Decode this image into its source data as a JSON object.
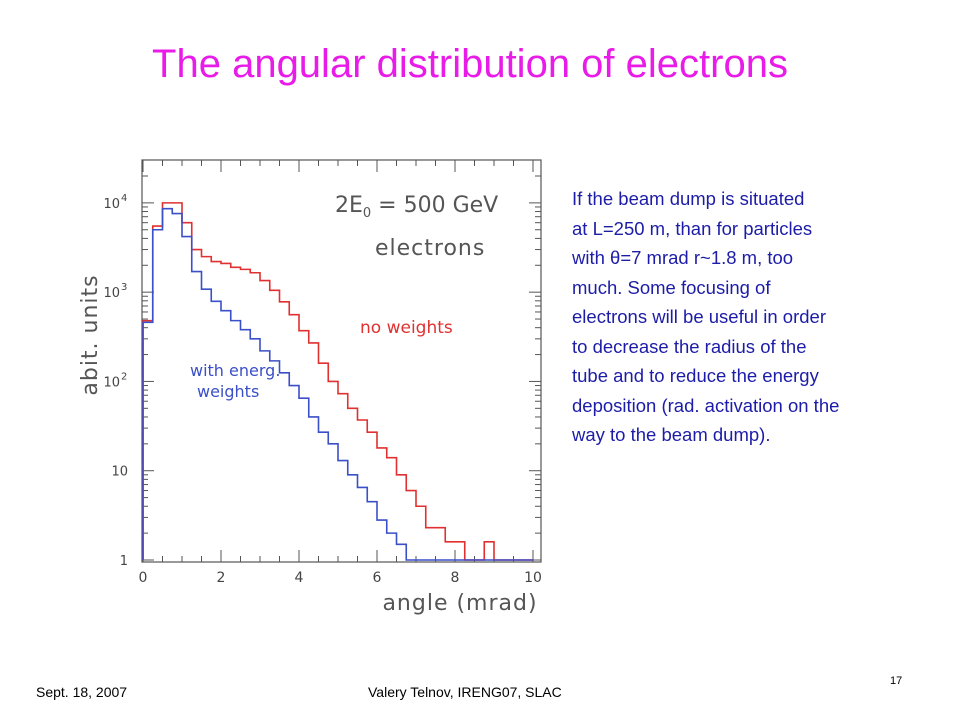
{
  "slide": {
    "title": "The angular distribution of electrons",
    "side_text": [
      "If the beam dump is situated",
      "at L=250 m, than for particles",
      "with θ=7 mrad r~1.8 m, too",
      "much. Some focusing of",
      "electrons will be useful in order",
      "to decrease the radius of the",
      "tube and to reduce the energy",
      "deposition (rad. activation on the",
      "way to the beam dump)."
    ],
    "footer_left": "Sept. 18, 2007",
    "footer_center": "Valery Telnov, IRENG07, SLAC",
    "page_number": "17"
  },
  "chart_data": {
    "type": "histogram",
    "xlabel": "angle (mrad)",
    "ylabel": "abit. units",
    "xlim": [
      0,
      10
    ],
    "ylim": [
      1,
      20000
    ],
    "yscale": "log",
    "x_ticks": [
      "0",
      "2",
      "4",
      "6",
      "8",
      "10"
    ],
    "y_ticks": [
      {
        "value": 1,
        "base": "1",
        "exp": ""
      },
      {
        "value": 10,
        "base": "10",
        "exp": ""
      },
      {
        "value": 100,
        "base": "10",
        "exp": "2"
      },
      {
        "value": 1000,
        "base": "10",
        "exp": "3"
      },
      {
        "value": 10000,
        "base": "10",
        "exp": "4"
      }
    ],
    "energy_label": "2E",
    "energy_label_sub": "0",
    "energy_label_rest": " = 500 GeV",
    "particle_label": "electrons",
    "bin_edges": [
      0,
      0.25,
      0.5,
      0.75,
      1,
      1.25,
      1.5,
      1.75,
      2,
      2.25,
      2.5,
      2.75,
      3,
      3.25,
      3.5,
      3.75,
      4,
      4.25,
      4.5,
      4.75,
      5,
      5.25,
      5.5,
      5.75,
      6,
      6.25,
      6.5,
      6.75,
      7,
      7.25,
      7.5,
      7.75,
      8,
      8.25,
      8.5,
      8.75,
      9,
      9.25,
      9.5,
      9.75,
      10
    ],
    "series": [
      {
        "name": "no weights",
        "color": "#e03030",
        "values": [
          480,
          5500,
          10000,
          10000,
          6000,
          3000,
          2500,
          2200,
          2100,
          1900,
          1800,
          1650,
          1350,
          1050,
          780,
          560,
          370,
          270,
          160,
          100,
          73,
          50,
          37,
          27,
          18,
          14,
          9,
          6,
          4,
          2.3,
          2.3,
          1.6,
          1.6,
          1,
          1,
          1.6,
          0,
          0,
          0,
          0
        ]
      },
      {
        "name": "with energ. weights",
        "color": "#3a4fc8",
        "values": [
          460,
          5000,
          8600,
          7600,
          4200,
          1700,
          1080,
          790,
          620,
          480,
          380,
          300,
          220,
          170,
          125,
          90,
          65,
          40,
          27,
          20,
          13,
          9,
          6.5,
          4.5,
          2.8,
          2,
          1.5,
          1,
          0,
          0,
          0,
          0,
          0,
          0,
          0,
          0,
          0,
          0,
          0,
          0
        ]
      }
    ],
    "series_labels": [
      {
        "lines": [
          "no weights"
        ]
      },
      {
        "lines": [
          "with energ.",
          "weights"
        ]
      }
    ]
  }
}
